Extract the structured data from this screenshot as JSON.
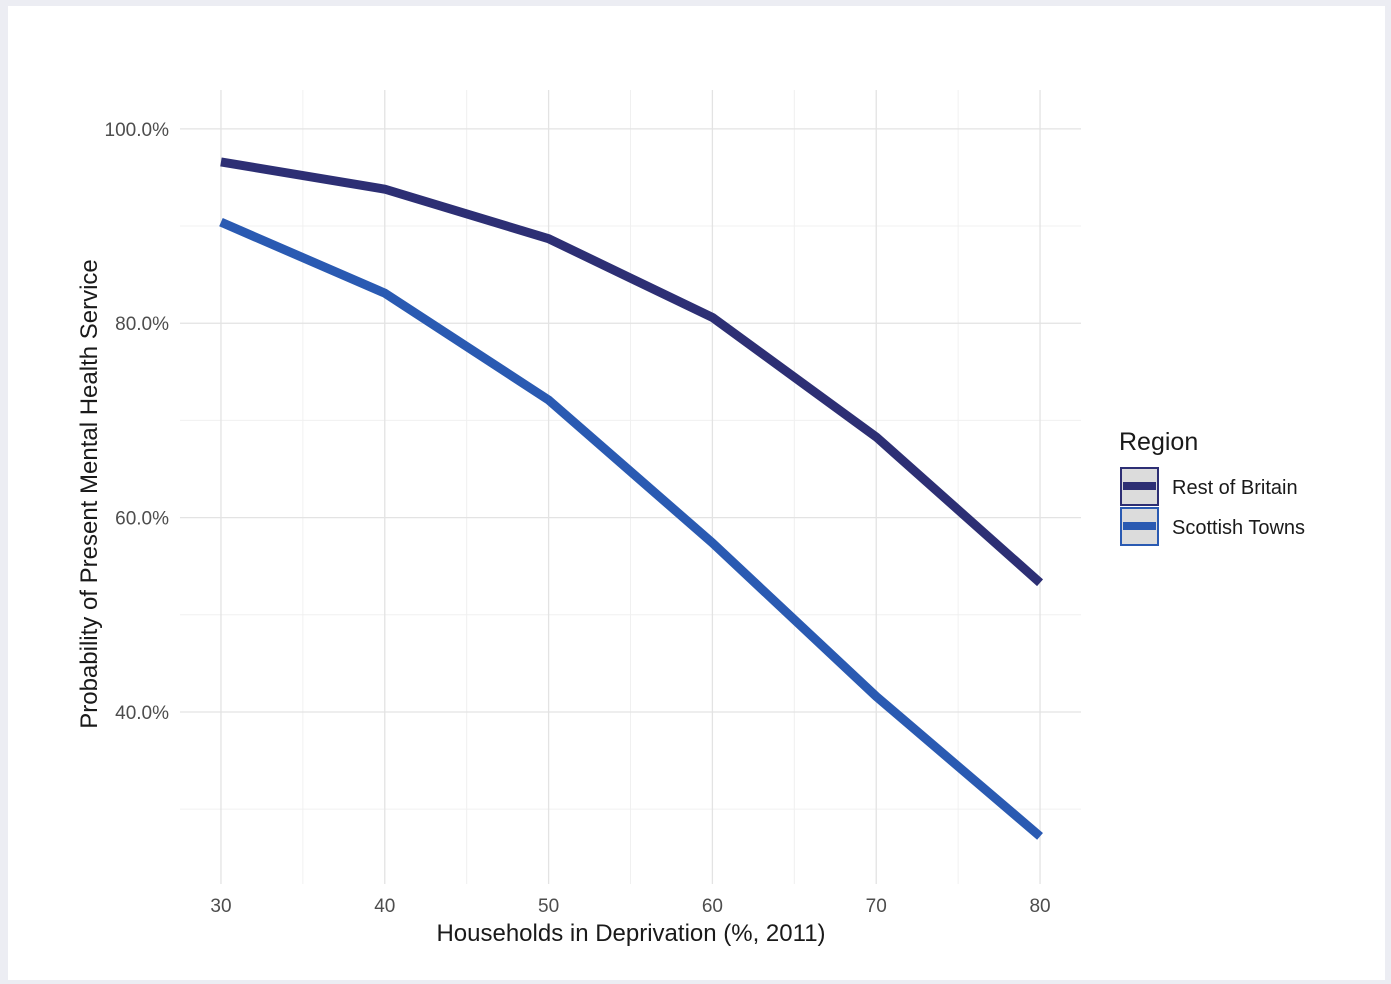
{
  "chart_data": {
    "type": "line",
    "title": "",
    "xlabel": "Households in Deprivation (%, 2011)",
    "ylabel": "Probability of Present Mental Health Service",
    "x": [
      30,
      40,
      50,
      60,
      70,
      80
    ],
    "xlim": [
      27.5,
      82.5
    ],
    "ylim": [
      22.3,
      104
    ],
    "x_ticks": [
      30,
      40,
      50,
      60,
      70,
      80
    ],
    "x_tick_labels": [
      "30",
      "40",
      "50",
      "60",
      "70",
      "80"
    ],
    "y_ticks": [
      40,
      60,
      80,
      100
    ],
    "y_tick_labels": [
      "40.0%",
      "60.0%",
      "80.0%",
      "100.0%"
    ],
    "y_minor_ticks": [
      30,
      50,
      70,
      90
    ],
    "x_minor_ticks": [
      35,
      45,
      55,
      65,
      75
    ],
    "grid": true,
    "series": [
      {
        "name": "Rest of Britain",
        "color": "#2d2f74",
        "values": [
          96.6,
          93.8,
          88.7,
          80.6,
          68.3,
          53.3
        ]
      },
      {
        "name": "Scottish Towns",
        "color": "#2a5ab2",
        "values": [
          90.4,
          83.1,
          72.1,
          57.4,
          41.6,
          27.2
        ]
      }
    ],
    "legend": {
      "title": "Region",
      "position": "right"
    }
  }
}
